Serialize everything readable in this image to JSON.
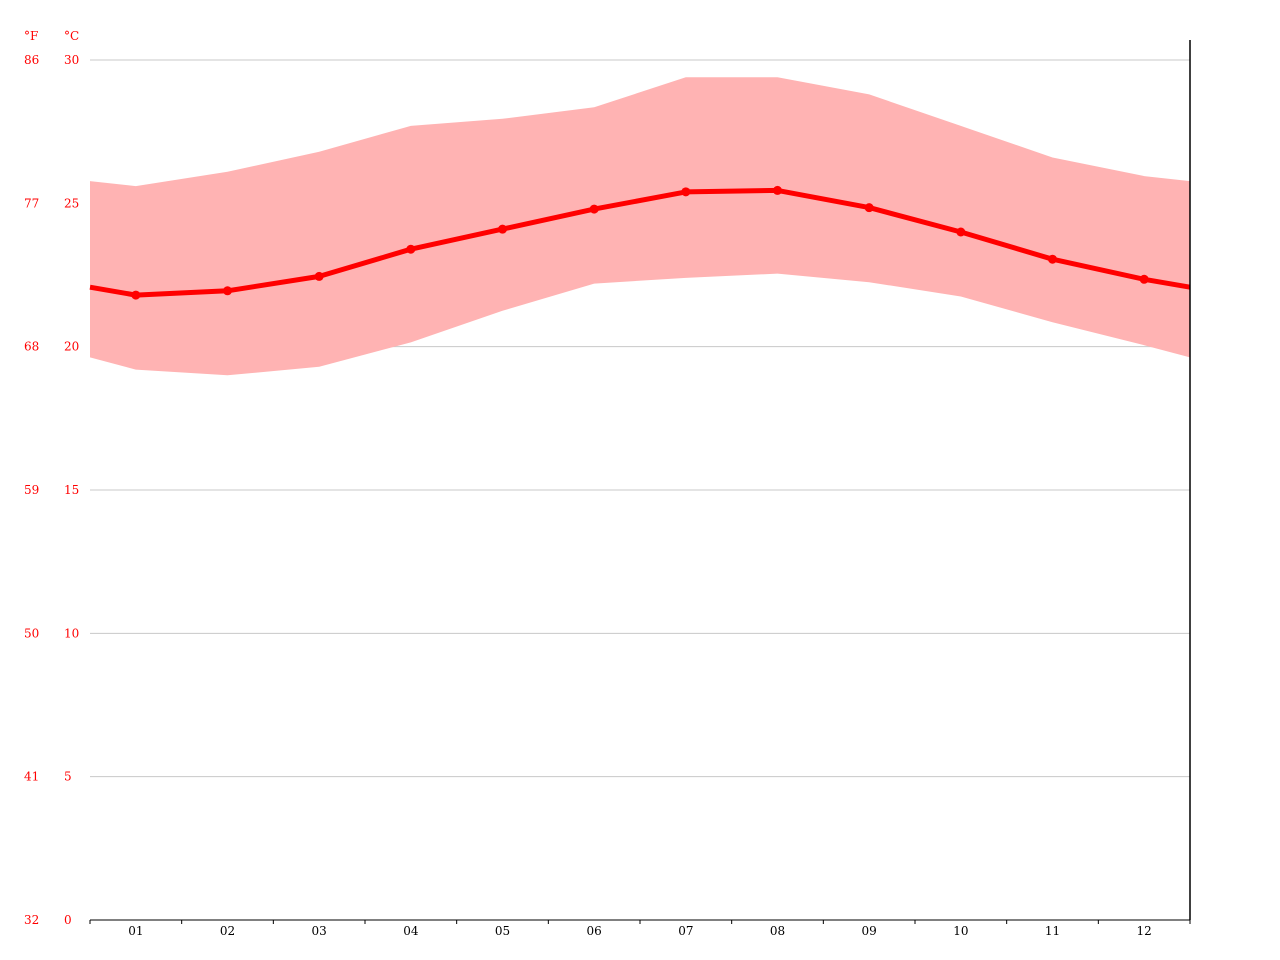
{
  "chart_data": {
    "type": "area",
    "title": "",
    "xlabel": "",
    "ylabel": "",
    "units": {
      "fahrenheit": "°F",
      "celsius": "°C"
    },
    "categories": [
      "01",
      "02",
      "03",
      "04",
      "05",
      "06",
      "07",
      "08",
      "09",
      "10",
      "11",
      "12"
    ],
    "series": [
      {
        "values": [
          21.8,
          21.95,
          22.45,
          23.4,
          24.1,
          24.8,
          25.4,
          25.45,
          24.85,
          24.0,
          23.05,
          22.35
        ]
      },
      {
        "values": [
          25.6,
          26.1,
          26.8,
          27.7,
          27.95,
          28.35,
          29.4,
          29.4,
          28.8,
          27.7,
          26.6,
          25.95
        ]
      },
      {
        "values": [
          19.2,
          19.0,
          19.3,
          20.15,
          21.25,
          22.2,
          22.4,
          22.55,
          22.25,
          21.75,
          20.85,
          20.05
        ]
      }
    ],
    "ylim": [
      0,
      30
    ],
    "y_ticks_c": [
      "0",
      "5",
      "10",
      "15",
      "20",
      "25",
      "30"
    ],
    "y_ticks_f": [
      "32",
      "41",
      "50",
      "59",
      "68",
      "77",
      "86"
    ],
    "grid": true,
    "colors": {
      "line": "#ff0000",
      "band": "#ffb3b3",
      "grid": "#c8c8c8",
      "axis": "#000000",
      "labels": "#ff0000"
    }
  }
}
